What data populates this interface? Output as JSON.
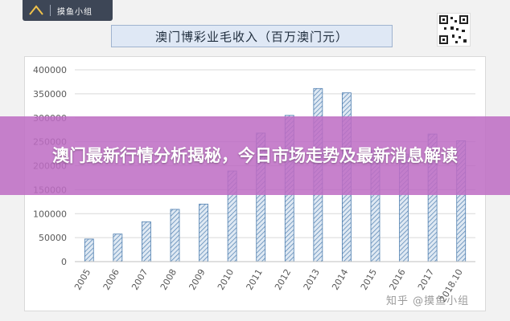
{
  "logo": {
    "text": "摸鱼小组"
  },
  "banner": {
    "headline": "澳门最新行情分析揭秘，今日市场走势及最新消息解读"
  },
  "watermark": {
    "text": "知乎 @摸鱼小组"
  },
  "chart_data": {
    "type": "bar",
    "title": "澳门博彩业毛收入（百万澳门元）",
    "categories": [
      "2005",
      "2006",
      "2007",
      "2008",
      "2009",
      "2010",
      "2011",
      "2012",
      "2013",
      "2014",
      "2015",
      "2016",
      "2017",
      "2018.10"
    ],
    "values": [
      47000,
      57500,
      83000,
      109000,
      120000,
      189000,
      268000,
      305000,
      361000,
      352000,
      231000,
      224000,
      266000,
      252000
    ],
    "ylim": [
      0,
      400000
    ],
    "yticks": [
      "0",
      "50000",
      "100000",
      "150000",
      "200000",
      "250000",
      "300000",
      "350000",
      "400000"
    ],
    "grid": true,
    "bar_color": "#4f7fb0"
  }
}
